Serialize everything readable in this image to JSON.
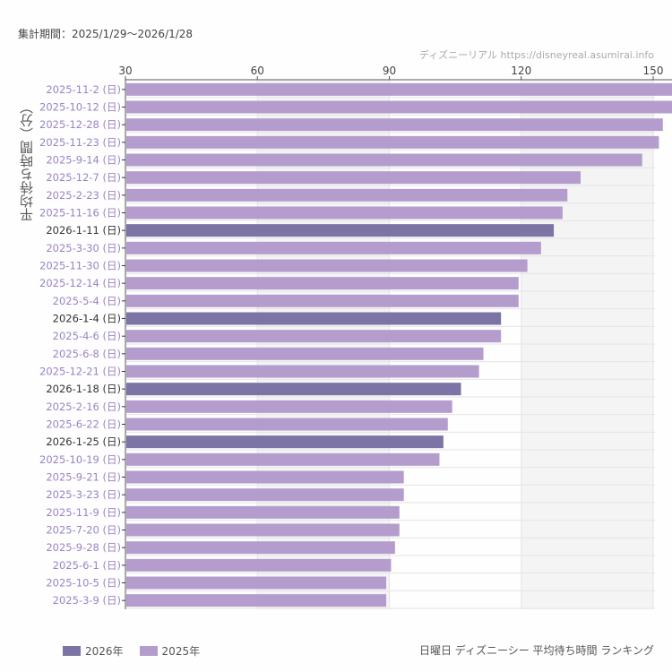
{
  "header": {
    "period": "集計期間：2025/1/29〜2026/1/28",
    "credit": "ディズニーリアル  https://disneyreal.asumirai.info"
  },
  "colors": {
    "2026": "#7b74a4",
    "2025": "#b49dcc",
    "label_2025": "#9a84c4",
    "label_2026": "#333333",
    "band": "#f4f4f4",
    "grid": "#e4e4e4"
  },
  "chart_data": {
    "type": "bar",
    "orientation": "horizontal",
    "title": "日曜日 ディズニーシー 平均待ち時間 ランキング",
    "ylabel": "平均待ち時間（分）",
    "xlim": [
      30,
      152
    ],
    "xticks": [
      30,
      60,
      90,
      120,
      150
    ],
    "grid": true,
    "legend_position": "bottom-left",
    "legend": [
      {
        "name": "2026年",
        "key": "2026"
      },
      {
        "name": "2025年",
        "key": "2025"
      }
    ],
    "categories": [
      "2025-11-2 (日)",
      "2025-10-12 (日)",
      "2025-12-28 (日)",
      "2025-11-23 (日)",
      "2025-9-14 (日)",
      "2025-12-7 (日)",
      "2025-2-23 (日)",
      "2025-11-16 (日)",
      "2026-1-11 (日)",
      "2025-3-30 (日)",
      "2025-11-30 (日)",
      "2025-12-14 (日)",
      "2025-5-4 (日)",
      "2026-1-4 (日)",
      "2025-4-6 (日)",
      "2025-6-8 (日)",
      "2025-12-21 (日)",
      "2026-1-18 (日)",
      "2025-2-16 (日)",
      "2025-6-22 (日)",
      "2026-1-25 (日)",
      "2025-10-19 (日)",
      "2025-9-21 (日)",
      "2025-3-23 (日)",
      "2025-11-9 (日)",
      "2025-7-20 (日)",
      "2025-9-28 (日)",
      "2025-6-1 (日)",
      "2025-10-5 (日)",
      "2025-3-9 (日)"
    ],
    "values": [
      155,
      155,
      152.2,
      151.3,
      147.5,
      133.5,
      130.5,
      129.4,
      127.4,
      124.5,
      121.4,
      119.4,
      119.4,
      115.4,
      115.4,
      111.4,
      110.4,
      106.3,
      104.3,
      103.3,
      102.3,
      101.4,
      93.3,
      93.3,
      92.3,
      92.3,
      91.3,
      90.4,
      89.3,
      89.3
    ],
    "years": [
      "2025",
      "2025",
      "2025",
      "2025",
      "2025",
      "2025",
      "2025",
      "2025",
      "2026",
      "2025",
      "2025",
      "2025",
      "2025",
      "2026",
      "2025",
      "2025",
      "2025",
      "2026",
      "2025",
      "2025",
      "2026",
      "2025",
      "2025",
      "2025",
      "2025",
      "2025",
      "2025",
      "2025",
      "2025",
      "2025"
    ]
  }
}
